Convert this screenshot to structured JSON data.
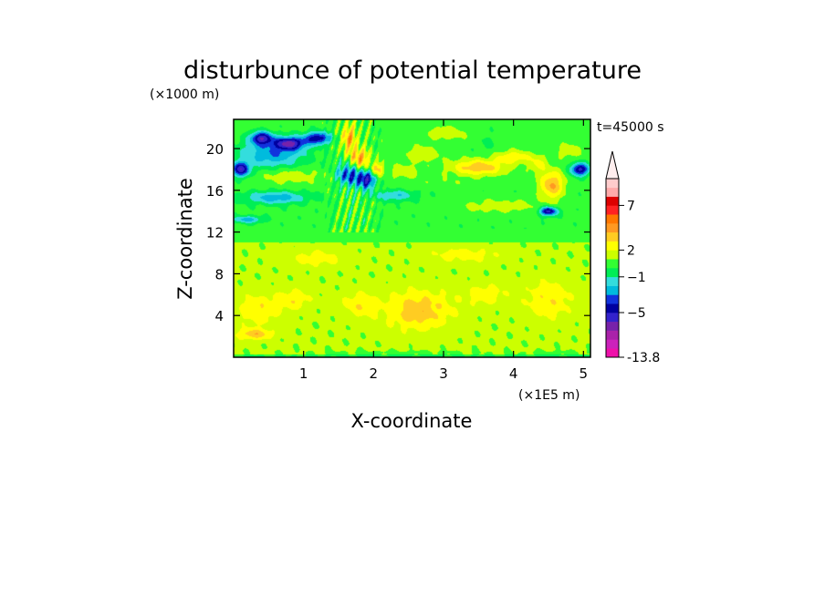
{
  "chart_data": {
    "type": "heatmap",
    "title": "disturbunce of potential temperature",
    "xlabel": "X-coordinate",
    "ylabel": "Z-coordinate",
    "x_unit": "(×1E5 m)",
    "y_unit": "(×1000 m)",
    "time_label": "t=45000 s",
    "xlim": [
      0,
      5.1
    ],
    "ylim": [
      0,
      22.8
    ],
    "x_ticks": [
      {
        "v": 1,
        "label": "1"
      },
      {
        "v": 2,
        "label": "2"
      },
      {
        "v": 3,
        "label": "3"
      },
      {
        "v": 4,
        "label": "4"
      },
      {
        "v": 5,
        "label": "5"
      }
    ],
    "y_ticks": [
      {
        "v": 4,
        "label": "4"
      },
      {
        "v": 8,
        "label": "8"
      },
      {
        "v": 12,
        "label": "12"
      },
      {
        "v": 16,
        "label": "16"
      },
      {
        "v": 20,
        "label": "20"
      }
    ],
    "grid": false,
    "colorbar": {
      "placement": "right",
      "min": -13.8,
      "extend": "max",
      "levels": [
        -13.8,
        -11,
        -9,
        -7,
        -6,
        -5,
        -4,
        -3,
        -2,
        -1,
        0,
        1,
        2,
        3,
        4,
        5,
        6,
        7,
        8,
        9
      ],
      "colors": [
        "#ee11aa",
        "#cc22bb",
        "#aa22aa",
        "#7722aa",
        "#3322cc",
        "#0000a0",
        "#1133dd",
        "#00bbdd",
        "#33dddd",
        "#00ee55",
        "#33ff33",
        "#ccff00",
        "#ffff00",
        "#ffcc22",
        "#ff9922",
        "#ff7700",
        "#ff2222",
        "#dd0000",
        "#ffaaaa",
        "#ffcccc"
      ],
      "labels": [
        {
          "v": -13.8,
          "label": "-13.8"
        },
        {
          "v": -5,
          "label": "−5"
        },
        {
          "v": -1,
          "label": "−1"
        },
        {
          "v": 2,
          "label": "2"
        },
        {
          "v": 7,
          "label": "7"
        }
      ],
      "extend_color": "#ffeeee"
    },
    "features": [
      {
        "type": "band",
        "z0": 0,
        "z1": 0.3,
        "value": 0
      },
      {
        "type": "band",
        "z0": 0.3,
        "z1": 11.0,
        "value": 1.2
      },
      {
        "type": "band",
        "z0": 11.0,
        "z1": 12.3,
        "value": 0.5
      },
      {
        "type": "band",
        "z0": 12.3,
        "z1": 16.0,
        "value": 0.3
      },
      {
        "type": "band",
        "z0": 16.0,
        "z1": 22.8,
        "value": 0.4
      },
      {
        "type": "blob",
        "x": 0.35,
        "z": 4.5,
        "rx": 0.35,
        "rz": 1.8,
        "value": 2.5
      },
      {
        "type": "blob",
        "x": 0.85,
        "z": 5.5,
        "rx": 0.3,
        "rz": 1.2,
        "value": 2.4
      },
      {
        "type": "blob",
        "x": 1.8,
        "z": 5.0,
        "rx": 0.3,
        "rz": 1.5,
        "value": 2.4
      },
      {
        "type": "blob",
        "x": 2.65,
        "z": 4.5,
        "rx": 0.55,
        "rz": 2.2,
        "value": 3.3
      },
      {
        "type": "blob",
        "x": 3.6,
        "z": 6.0,
        "rx": 0.35,
        "rz": 1.2,
        "value": 2.3
      },
      {
        "type": "blob",
        "x": 4.5,
        "z": 5.5,
        "rx": 0.4,
        "rz": 2.2,
        "value": 2.5
      },
      {
        "type": "blob",
        "x": 1.2,
        "z": 9.5,
        "rx": 0.5,
        "rz": 1.0,
        "value": 2.1
      },
      {
        "type": "blob",
        "x": 3.3,
        "z": 9.8,
        "rx": 0.6,
        "rz": 0.9,
        "value": 2.1
      },
      {
        "type": "blob",
        "x": 0.3,
        "z": 2.2,
        "rx": 0.3,
        "rz": 0.6,
        "value": 3.2
      },
      {
        "type": "blob",
        "x": 0.1,
        "z": 18.0,
        "rx": 0.15,
        "rz": 0.8,
        "value": -5
      },
      {
        "type": "blob",
        "x": 0.4,
        "z": 21.0,
        "rx": 0.18,
        "rz": 0.7,
        "value": -4.8
      },
      {
        "type": "blob",
        "x": 0.8,
        "z": 20.5,
        "rx": 0.25,
        "rz": 0.7,
        "value": -5
      },
      {
        "type": "blob",
        "x": 1.2,
        "z": 21.0,
        "rx": 0.22,
        "rz": 0.7,
        "value": -4.3
      },
      {
        "type": "blob",
        "x": 0.55,
        "z": 19.5,
        "rx": 0.55,
        "rz": 1.6,
        "value": -2.5
      },
      {
        "type": "blob",
        "x": 0.8,
        "z": 17.4,
        "rx": 0.5,
        "rz": 0.9,
        "value": 2.2
      },
      {
        "type": "blob",
        "x": 0.6,
        "z": 15.3,
        "rx": 0.5,
        "rz": 0.7,
        "value": -2.2
      },
      {
        "type": "blob",
        "x": 1.65,
        "z": 21.0,
        "rx": 0.12,
        "rz": 1.5,
        "value": 4.5
      },
      {
        "type": "blob",
        "x": 1.8,
        "z": 19.0,
        "rx": 0.15,
        "rz": 1.2,
        "value": 4.8
      },
      {
        "type": "blob",
        "x": 1.65,
        "z": 17.5,
        "rx": 0.2,
        "rz": 1.2,
        "value": -3.5
      },
      {
        "type": "blob",
        "x": 1.9,
        "z": 17.0,
        "rx": 0.15,
        "rz": 1.0,
        "value": -4.5
      },
      {
        "type": "blob",
        "x": 2.05,
        "z": 18.0,
        "rx": 0.1,
        "rz": 0.8,
        "value": 4.0
      },
      {
        "type": "blob",
        "x": 2.45,
        "z": 17.8,
        "rx": 0.25,
        "rz": 0.8,
        "value": 2.2
      },
      {
        "type": "blob",
        "x": 2.7,
        "z": 19.5,
        "rx": 0.3,
        "rz": 0.9,
        "value": 2.2
      },
      {
        "type": "blob",
        "x": 3.05,
        "z": 21.5,
        "rx": 0.35,
        "rz": 0.8,
        "value": 2.1
      },
      {
        "type": "blob",
        "x": 3.6,
        "z": 20.5,
        "rx": 0.2,
        "rz": 1.5,
        "value": 0.3
      },
      {
        "type": "blob",
        "x": 3.5,
        "z": 18.2,
        "rx": 0.45,
        "rz": 0.9,
        "value": 4.2
      },
      {
        "type": "blob",
        "x": 4.0,
        "z": 19.2,
        "rx": 0.3,
        "rz": 0.7,
        "value": 3.2
      },
      {
        "type": "blob",
        "x": 4.55,
        "z": 16.5,
        "rx": 0.2,
        "rz": 1.6,
        "value": 4.5
      },
      {
        "type": "blob",
        "x": 4.35,
        "z": 18.5,
        "rx": 0.15,
        "rz": 1.0,
        "value": 2.5
      },
      {
        "type": "blob",
        "x": 4.5,
        "z": 14.0,
        "rx": 0.15,
        "rz": 0.5,
        "value": -5
      },
      {
        "type": "blob",
        "x": 4.95,
        "z": 18.0,
        "rx": 0.15,
        "rz": 0.7,
        "value": -5
      },
      {
        "type": "blob",
        "x": 4.8,
        "z": 19.8,
        "rx": 0.2,
        "rz": 0.8,
        "value": 2.2
      },
      {
        "type": "blob",
        "x": 2.3,
        "z": 15.5,
        "rx": 0.35,
        "rz": 0.6,
        "value": -1.5
      },
      {
        "type": "blob",
        "x": 3.8,
        "z": 14.5,
        "rx": 0.7,
        "rz": 0.8,
        "value": 2.1
      },
      {
        "type": "blob",
        "x": 0.2,
        "z": 13.2,
        "rx": 0.25,
        "rz": 0.4,
        "value": -2
      },
      {
        "type": "blob",
        "x": 3.0,
        "z": 16.8,
        "rx": 0.35,
        "rz": 0.6,
        "value": 1.3
      },
      {
        "type": "blob",
        "x": 2.35,
        "z": 0.4,
        "rx": 1.4,
        "rz": 0.3,
        "value": 0.3
      },
      {
        "type": "blob",
        "x": 4.6,
        "z": 0.4,
        "rx": 0.6,
        "rz": 0.3,
        "value": 0.3
      }
    ]
  }
}
